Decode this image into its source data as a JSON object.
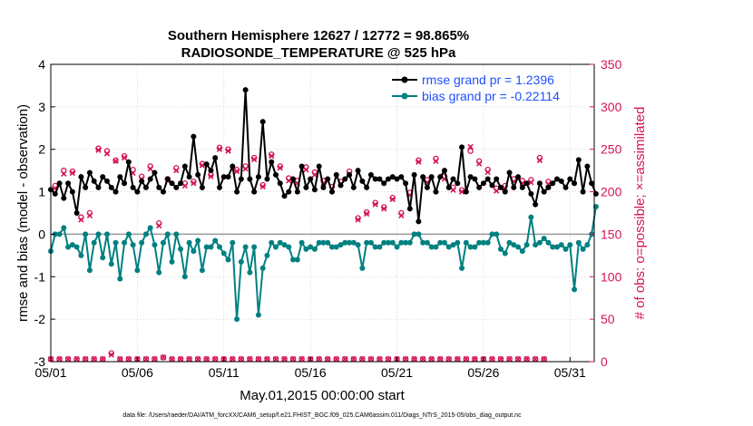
{
  "chart_data": {
    "type": "line",
    "title_line1": "Southern Hemisphere 12627 / 12772 = 98.865%",
    "title_line2": "RADIOSONDE_TEMPERATURE @ 525 hPa",
    "xlabel": "May.01,2015 00:00:00 start",
    "ylabel_left": "rmse and bias (model - observation)",
    "ylabel_right": "# of obs: o=possible; ×=assimilated",
    "footer": "data file: /Users/raeder/DAI/ATM_forcXX/CAM6_setup/f.e21.FHIST_BGC.f09_025.CAM6assim.011/Diags_NTrS_2015-05/obs_diag_output.nc",
    "xlim_days": [
      0,
      31.4
    ],
    "ylim_left": [
      -3,
      4
    ],
    "ylim_right": [
      0,
      350
    ],
    "x_ticks": [
      0,
      5,
      10,
      15,
      20,
      25,
      30
    ],
    "x_tick_labels": [
      "05/01",
      "05/06",
      "05/11",
      "05/16",
      "05/21",
      "05/26",
      "05/31"
    ],
    "y_left_ticks": [
      "-3",
      "-2",
      "-1",
      "0",
      "1",
      "2",
      "3",
      "4"
    ],
    "y_right_ticks": [
      "0",
      "50",
      "100",
      "150",
      "200",
      "250",
      "300",
      "350"
    ],
    "colors": {
      "rmse": "#000000",
      "bias": "#008080",
      "obs": "#d4145a",
      "zero_line": "#999999",
      "legend_text": "#1f4fff"
    },
    "series": [
      {
        "name": "rmse grand pr = 1.2396",
        "axis": "left",
        "values": [
          1.05,
          0.95,
          1.2,
          0.85,
          1.2,
          1.0,
          0.5,
          1.35,
          1.1,
          1.45,
          1.25,
          1.1,
          1.35,
          1.25,
          1.1,
          1.0,
          1.35,
          1.2,
          1.7,
          1.1,
          1.0,
          1.25,
          1.1,
          1.3,
          1.45,
          1.1,
          1.0,
          1.3,
          1.2,
          1.1,
          1.2,
          1.6,
          1.35,
          2.3,
          1.4,
          1.1,
          1.65,
          1.5,
          1.8,
          1.1,
          1.35,
          1.35,
          1.6,
          1.0,
          1.3,
          3.4,
          1.3,
          1.0,
          1.35,
          2.65,
          1.3,
          1.7,
          1.4,
          1.2,
          0.9,
          1.0,
          1.3,
          1.0,
          1.6,
          1.1,
          1.3,
          1.05,
          1.6,
          1.1,
          1.3,
          1.0,
          1.4,
          1.15,
          1.3,
          1.4,
          1.1,
          1.5,
          1.25,
          1.1,
          1.4,
          1.3,
          1.3,
          1.2,
          1.3,
          1.35,
          1.3,
          1.35,
          1.2,
          0.6,
          1.4,
          0.3,
          1.35,
          1.1,
          1.35,
          1.0,
          1.35,
          1.5,
          1.1,
          1.3,
          1.2,
          2.05,
          1.0,
          1.35,
          1.3,
          1.1,
          1.2,
          1.3,
          1.15,
          1.3,
          1.1,
          1.0,
          1.45,
          1.1,
          1.35,
          1.1,
          1.2,
          0.95,
          0.7,
          1.2,
          1.0,
          1.1,
          1.2,
          1.3,
          1.25,
          1.1,
          1.3,
          1.2,
          1.75,
          1.0,
          1.6,
          1.2,
          0.95
        ]
      },
      {
        "name": "bias grand pr = -0.22114",
        "axis": "left",
        "values": [
          -0.4,
          0.0,
          0.0,
          0.15,
          -0.3,
          -0.25,
          -0.3,
          -0.5,
          0.0,
          -0.85,
          -0.2,
          0.0,
          -0.55,
          0.0,
          -0.7,
          -0.2,
          -1.05,
          -0.2,
          0.0,
          -0.25,
          -0.85,
          -0.2,
          0.0,
          0.15,
          -0.25,
          -0.9,
          -0.2,
          0.0,
          -0.65,
          0.0,
          -0.35,
          -1.0,
          -0.2,
          -0.4,
          -0.15,
          -0.85,
          -0.3,
          -0.3,
          -0.15,
          -0.3,
          -0.45,
          -0.6,
          -0.2,
          -2.0,
          -0.65,
          -0.3,
          -0.9,
          -0.3,
          -1.9,
          -0.8,
          -0.5,
          -0.2,
          -0.3,
          -0.2,
          -0.25,
          -0.3,
          -0.6,
          -0.6,
          -0.2,
          -0.35,
          -0.3,
          -0.35,
          -0.2,
          -0.2,
          -0.2,
          -0.3,
          -0.3,
          -0.25,
          -0.2,
          -0.2,
          -0.2,
          -0.25,
          -0.8,
          -0.2,
          -0.2,
          -0.3,
          -0.3,
          -0.2,
          -0.2,
          -0.2,
          -0.3,
          -0.2,
          -0.2,
          -0.2,
          0.0,
          0.0,
          -0.2,
          -0.2,
          -0.3,
          -0.3,
          -0.2,
          -0.2,
          -0.3,
          -0.25,
          -0.2,
          -0.8,
          -0.2,
          -0.3,
          -0.3,
          -0.2,
          -0.2,
          -0.2,
          0.0,
          0.0,
          -0.35,
          -0.45,
          -0.2,
          -0.25,
          -0.3,
          -0.4,
          -0.25,
          0.4,
          -0.25,
          -0.2,
          -0.1,
          -0.2,
          -0.3,
          -0.3,
          -0.25,
          -0.35,
          -0.25,
          -1.3,
          -0.2,
          -0.35,
          -0.25,
          0.0,
          0.65
        ]
      },
      {
        "name": "possible obs",
        "axis": "right",
        "values": [
          3,
          207,
          3,
          225,
          3,
          224,
          3,
          170,
          3,
          175,
          3,
          251,
          3,
          248,
          10,
          237,
          3,
          242,
          3,
          226,
          3,
          218,
          3,
          230,
          3,
          163,
          5,
          215,
          3,
          228,
          3,
          210,
          3,
          212,
          3,
          233,
          3,
          220,
          3,
          252,
          3,
          250,
          3,
          226,
          3,
          230,
          3,
          240,
          3,
          208,
          3,
          244,
          3,
          230,
          3,
          216,
          3,
          213,
          3,
          229,
          3,
          223,
          3,
          213,
          3,
          206,
          3,
          212,
          3,
          224,
          3,
          169,
          3,
          176,
          3,
          187,
          3,
          182,
          3,
          193,
          3,
          175,
          3,
          199,
          3,
          237,
          3,
          214,
          3,
          239,
          3,
          218,
          3,
          205,
          3,
          202,
          3,
          248,
          3,
          236,
          3,
          226,
          3,
          204,
          3,
          207,
          3,
          215,
          3,
          213,
          3,
          214,
          3,
          240,
          3,
          212
        ]
      },
      {
        "name": "assimilated obs",
        "axis": "right",
        "values": [
          3,
          204,
          3,
          221,
          3,
          222,
          3,
          167,
          3,
          172,
          3,
          249,
          3,
          245,
          8,
          236,
          3,
          240,
          3,
          222,
          3,
          215,
          3,
          227,
          3,
          160,
          5,
          213,
          3,
          225,
          3,
          207,
          3,
          210,
          3,
          231,
          3,
          218,
          3,
          250,
          3,
          248,
          3,
          224,
          3,
          227,
          3,
          238,
          3,
          206,
          3,
          242,
          3,
          228,
          3,
          213,
          3,
          210,
          3,
          226,
          3,
          220,
          3,
          210,
          3,
          203,
          3,
          209,
          3,
          221,
          3,
          167,
          3,
          174,
          3,
          185,
          3,
          180,
          3,
          191,
          3,
          172,
          3,
          196,
          3,
          235,
          3,
          211,
          3,
          236,
          3,
          215,
          3,
          202,
          3,
          200,
          3,
          253,
          3,
          233,
          3,
          223,
          3,
          201,
          3,
          204,
          3,
          212,
          3,
          210,
          3,
          211,
          3,
          237,
          3,
          209
        ]
      }
    ]
  }
}
